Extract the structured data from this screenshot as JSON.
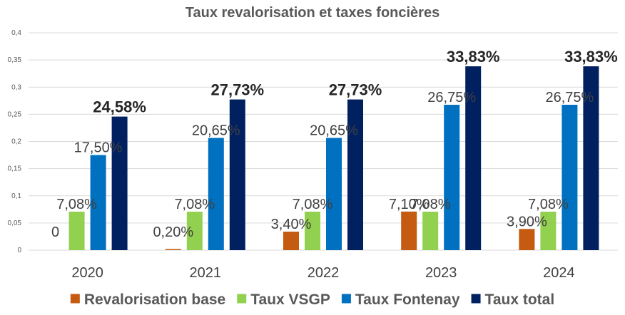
{
  "chart_data": {
    "type": "bar",
    "title": "Taux revalorisation et taxes foncières",
    "categories": [
      "2020",
      "2021",
      "2022",
      "2023",
      "2024"
    ],
    "ylim": [
      0,
      0.4
    ],
    "yticks": [
      "0",
      "0,05",
      "0,1",
      "0,15",
      "0,2",
      "0,25",
      "0,3",
      "0,35",
      "0,4"
    ],
    "grid": true,
    "legend_position": "bottom",
    "series": [
      {
        "name": "Revalorisation base",
        "color": "#c55a11",
        "values": [
          0,
          0.002,
          0.034,
          0.071,
          0.039
        ],
        "labels": [
          "0",
          "0,20%",
          "3,40%",
          "7,10%",
          "3,90%"
        ]
      },
      {
        "name": "Taux VSGP",
        "color": "#92d050",
        "values": [
          0.0708,
          0.0708,
          0.0708,
          0.0708,
          0.0708
        ],
        "labels": [
          "7,08%",
          "7,08%",
          "7,08%",
          "7,08%",
          "7,08%"
        ]
      },
      {
        "name": "Taux Fontenay",
        "color": "#0070c0",
        "values": [
          0.175,
          0.2065,
          0.2065,
          0.2675,
          0.2675
        ],
        "labels": [
          "17,50%",
          "20,65%",
          "20,65%",
          "26,75%",
          "26,75%"
        ]
      },
      {
        "name": "Taux total",
        "color": "#002060",
        "values": [
          0.2458,
          0.2773,
          0.2773,
          0.3383,
          0.3383
        ],
        "labels": [
          "24,58%",
          "27,73%",
          "27,73%",
          "33,83%",
          "33,83%"
        ]
      }
    ]
  }
}
